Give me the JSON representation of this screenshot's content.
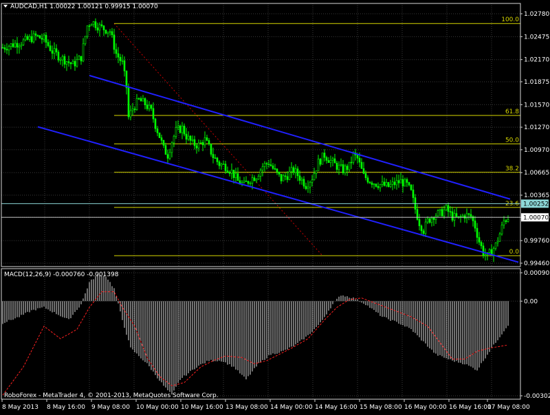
{
  "header": {
    "symbol_info": "AUDCAD,H1  1.00022 1.00121 0.99915 1.00070"
  },
  "macd_header": "MACD(12,26,9) -0.000760 -0.001398",
  "footer": "RoboForex - MetaTrader 4, © 2001-2013, MetaQuotes Software Corp.",
  "colors": {
    "background": "#000000",
    "grid": "#3c3c3c",
    "frame": "#d8d8d8",
    "axis_text": "#ffffff",
    "candles": "#00ff00",
    "channel": "#2020ff",
    "fibo": "#d8d800",
    "fibo_trend": "#cc0000",
    "bid_line": "#8dd8d8",
    "ask_line": "#bfbfbf",
    "histogram": "#e0e0e0",
    "signal": "#ff2020"
  },
  "chart_data": [
    {
      "type": "candlestick",
      "title": "AUDCAD,H1",
      "ylim": [
        0.9946,
        1.0278
      ],
      "y_ticks": [
        "1.02780",
        "1.02475",
        "1.02170",
        "1.01875",
        "1.01570",
        "1.01270",
        "1.00970",
        "1.00665",
        "1.00365",
        "1.00070",
        "0.99760",
        "0.99460"
      ],
      "x_ticks": [
        "8 May 2013",
        "8 May 16:00",
        "9 May 08:00",
        "10 May 00:00",
        "10 May 16:00",
        "13 May 08:00",
        "14 May 00:00",
        "14 May 16:00",
        "15 May 08:00",
        "16 May 00:00",
        "16 May 16:00",
        "17 May 08:00"
      ],
      "grid": true,
      "last_price": "1.00070",
      "bid_tag": "1.00252",
      "close_path": [
        [
          0,
          1.0233
        ],
        [
          6,
          1.0238
        ],
        [
          11,
          1.0242
        ],
        [
          16,
          1.0248
        ],
        [
          20,
          1.0244
        ],
        [
          24,
          1.0228
        ],
        [
          28,
          1.022
        ],
        [
          31,
          1.0215
        ],
        [
          34,
          1.021
        ],
        [
          38,
          1.022
        ],
        [
          41,
          1.0262
        ],
        [
          43,
          1.0268
        ],
        [
          46,
          1.0262
        ],
        [
          49,
          1.0258
        ],
        [
          52,
          1.0255
        ],
        [
          55,
          1.0225
        ],
        [
          58,
          1.0212
        ],
        [
          60,
          1.018
        ],
        [
          61,
          1.014
        ],
        [
          63,
          1.0152
        ],
        [
          66,
          1.0163
        ],
        [
          69,
          1.0158
        ],
        [
          72,
          1.0148
        ],
        [
          74,
          1.013
        ],
        [
          76,
          1.0115
        ],
        [
          78,
          1.0098
        ],
        [
          80,
          1.009
        ],
        [
          82,
          1.0108
        ],
        [
          84,
          1.0122
        ],
        [
          87,
          1.0126
        ],
        [
          89,
          1.0115
        ],
        [
          92,
          1.0105
        ],
        [
          95,
          1.0103
        ],
        [
          98,
          1.011
        ],
        [
          100,
          1.01
        ],
        [
          102,
          1.0088
        ],
        [
          105,
          1.0078
        ],
        [
          108,
          1.0075
        ],
        [
          111,
          1.0068
        ],
        [
          114,
          1.0055
        ],
        [
          117,
          1.005
        ],
        [
          120,
          1.0058
        ],
        [
          123,
          1.0062
        ],
        [
          126,
          1.0075
        ],
        [
          129,
          1.008
        ],
        [
          132,
          1.0068
        ],
        [
          135,
          1.0058
        ],
        [
          138,
          1.0063
        ],
        [
          141,
          1.007
        ],
        [
          144,
          1.006
        ],
        [
          147,
          1.005
        ],
        [
          150,
          1.006
        ],
        [
          153,
          1.008
        ],
        [
          156,
          1.009
        ],
        [
          159,
          1.0082
        ],
        [
          162,
          1.0075
        ],
        [
          165,
          1.007
        ],
        [
          168,
          1.0075
        ],
        [
          170,
          1.009
        ],
        [
          172,
          1.0085
        ],
        [
          175,
          1.0062
        ],
        [
          178,
          1.0056
        ],
        [
          181,
          1.0052
        ],
        [
          184,
          1.005
        ],
        [
          187,
          1.0048
        ],
        [
          190,
          1.0052
        ],
        [
          193,
          1.0055
        ],
        [
          196,
          1.005
        ],
        [
          198,
          1.004
        ],
        [
          200,
          1.0018
        ],
        [
          202,
          1.0
        ],
        [
          204,
          0.999
        ],
        [
          206,
          1.0002
        ],
        [
          209,
          1.001
        ],
        [
          212,
          1.0012
        ],
        [
          215,
          1.0018
        ],
        [
          218,
          1.0008
        ],
        [
          221,
          1.0005
        ],
        [
          224,
          1.001
        ],
        [
          227,
          1.0008
        ],
        [
          229,
          0.9995
        ],
        [
          231,
          0.9975
        ],
        [
          233,
          0.996
        ],
        [
          235,
          0.9955
        ],
        [
          237,
          0.9962
        ],
        [
          239,
          0.997
        ],
        [
          241,
          0.9985
        ],
        [
          243,
          1.0002
        ],
        [
          245,
          1.0007
        ]
      ],
      "channel_upper": [
        [
          42,
          1.01958
        ],
        [
          246,
          1.00313
        ]
      ],
      "channel_lower": [
        [
          17,
          1.01275
        ],
        [
          250,
          0.99473
        ]
      ],
      "fibonacci": {
        "levels": [
          {
            "label": "100.0",
            "value": 1.0265
          },
          {
            "label": "61.8",
            "value": 1.01426
          },
          {
            "label": "50.0",
            "value": 1.01048
          },
          {
            "label": "38.2",
            "value": 1.00669
          },
          {
            "label": "23.6",
            "value": 1.00202
          },
          {
            "label": "0.0",
            "value": 0.9956
          }
        ],
        "start_bar": 54,
        "trend_from": [
          54,
          1.0265
        ],
        "trend_to": [
          155,
          0.9956
        ]
      }
    },
    {
      "type": "bar",
      "title": "MACD(12,26,9) -0.000760 -0.001398",
      "ylim": [
        -0.00302,
        0.000905
      ],
      "y_ticks": [
        "0.000905",
        "0.00",
        "-0.00302"
      ],
      "macd_path": [
        [
          0,
          -0.0007
        ],
        [
          8,
          -0.0005
        ],
        [
          14,
          -0.0003
        ],
        [
          20,
          -0.0002
        ],
        [
          26,
          -0.0004
        ],
        [
          32,
          -0.0006
        ],
        [
          38,
          -0.0001
        ],
        [
          42,
          0.0006
        ],
        [
          46,
          0.00085
        ],
        [
          50,
          0.0008
        ],
        [
          54,
          0.0004
        ],
        [
          58,
          -0.0006
        ],
        [
          62,
          -0.0015
        ],
        [
          70,
          -0.002
        ],
        [
          78,
          -0.0027
        ],
        [
          82,
          -0.003
        ],
        [
          86,
          -0.0025
        ],
        [
          94,
          -0.0021
        ],
        [
          100,
          -0.0019
        ],
        [
          106,
          -0.0019
        ],
        [
          112,
          -0.0021
        ],
        [
          118,
          -0.0025
        ],
        [
          124,
          -0.002
        ],
        [
          130,
          -0.0017
        ],
        [
          136,
          -0.0016
        ],
        [
          142,
          -0.0014
        ],
        [
          148,
          -0.0011
        ],
        [
          154,
          -0.0007
        ],
        [
          160,
          -0.0001
        ],
        [
          164,
          0.0002
        ],
        [
          170,
          0.0001
        ],
        [
          176,
          -0.0001
        ],
        [
          184,
          -0.0005
        ],
        [
          192,
          -0.0007
        ],
        [
          198,
          -0.0009
        ],
        [
          204,
          -0.0013
        ],
        [
          210,
          -0.0017
        ],
        [
          218,
          -0.0019
        ],
        [
          224,
          -0.002
        ],
        [
          230,
          -0.0022
        ],
        [
          236,
          -0.0016
        ],
        [
          245,
          -0.00076
        ]
      ],
      "signal_path": [
        [
          0,
          -0.003
        ],
        [
          10,
          -0.0021
        ],
        [
          20,
          -0.0008
        ],
        [
          28,
          -0.0012
        ],
        [
          36,
          -0.0009
        ],
        [
          42,
          -0.0002
        ],
        [
          48,
          0.0003
        ],
        [
          54,
          0.0003
        ],
        [
          58,
          -0.0002
        ],
        [
          64,
          -0.0008
        ],
        [
          70,
          -0.0018
        ],
        [
          76,
          -0.0024
        ],
        [
          82,
          -0.0027
        ],
        [
          88,
          -0.0026
        ],
        [
          96,
          -0.0021
        ],
        [
          102,
          -0.0019
        ],
        [
          108,
          -0.00175
        ],
        [
          116,
          -0.0018
        ],
        [
          122,
          -0.002
        ],
        [
          128,
          -0.0019
        ],
        [
          134,
          -0.0017
        ],
        [
          140,
          -0.0015
        ],
        [
          148,
          -0.0012
        ],
        [
          156,
          -0.0006
        ],
        [
          162,
          -0.0002
        ],
        [
          168,
          5e-05
        ],
        [
          174,
          0.0001
        ],
        [
          182,
          -0.0001
        ],
        [
          190,
          -0.0003
        ],
        [
          198,
          -0.0005
        ],
        [
          206,
          -0.0008
        ],
        [
          214,
          -0.0015
        ],
        [
          218,
          -0.00185
        ],
        [
          224,
          -0.00185
        ],
        [
          230,
          -0.0016
        ],
        [
          236,
          -0.0015
        ],
        [
          245,
          -0.0014
        ]
      ]
    }
  ]
}
